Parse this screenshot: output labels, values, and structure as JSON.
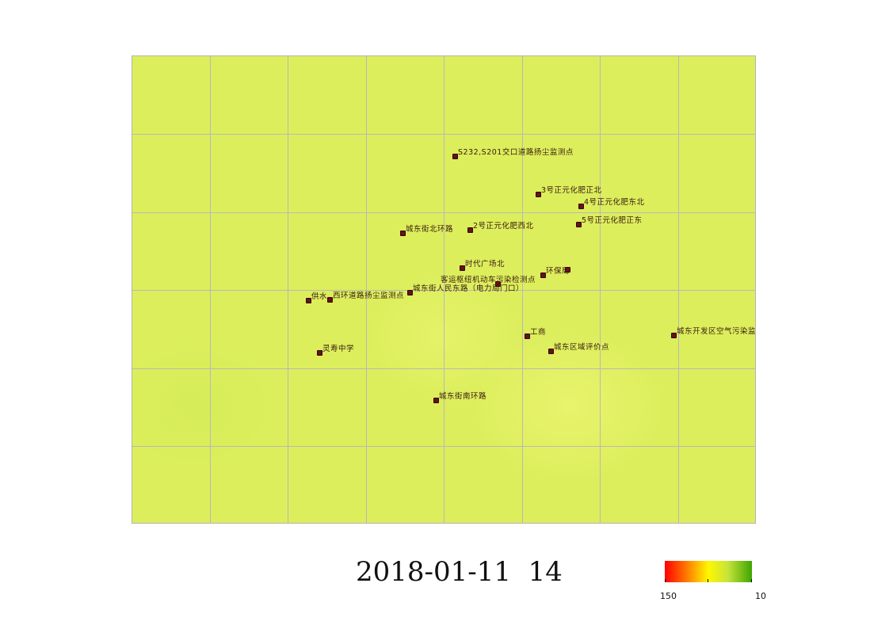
{
  "timestamp": "2018-01-11  14",
  "colors": {
    "background": "#dcee5c",
    "grid": "#b9b9b9",
    "station_marker": "#6b0f1a",
    "scale": [
      "#ff0000",
      "#ff7a00",
      "#fff700",
      "#c8e43a",
      "#3fa500"
    ]
  },
  "legend": {
    "max_label": "150",
    "min_label": "10"
  },
  "stations": [
    {
      "name": "S232,S201交口道路扬尘监测点"
    },
    {
      "name": "3号正元化肥正北"
    },
    {
      "name": "4号正元化肥东北"
    },
    {
      "name": "5号正元化肥正东"
    },
    {
      "name": "城东街北环路"
    },
    {
      "name": "2号正元化肥西北"
    },
    {
      "name": "时代广场北"
    },
    {
      "name": "环保局"
    },
    {
      "name": "客运枢纽机动车污染检测点"
    },
    {
      "name": "城东街人民东路（电力局门口）"
    },
    {
      "name": "供水"
    },
    {
      "name": "西环道路扬尘监测点"
    },
    {
      "name": "工商"
    },
    {
      "name": "城东开发区空气污染监测点"
    },
    {
      "name": "灵寿中学"
    },
    {
      "name": "城东区域评价点"
    },
    {
      "name": "城东街南环路"
    },
    {
      "name": ""
    }
  ]
}
